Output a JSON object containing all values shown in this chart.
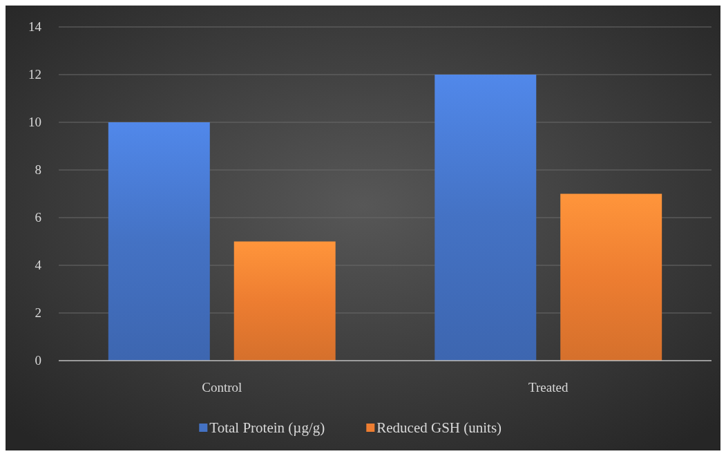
{
  "chart_data": {
    "type": "bar",
    "categories": [
      "Control",
      "Treated"
    ],
    "series": [
      {
        "name": "Total Protein (µg/g)",
        "color": "#4472c4",
        "values": [
          10,
          12
        ]
      },
      {
        "name": "Reduced GSH (units)",
        "color": "#ed7d31",
        "values": [
          5,
          7
        ]
      }
    ],
    "ylim": [
      0,
      14
    ],
    "yticks": [
      0,
      2,
      4,
      6,
      8,
      10,
      12,
      14
    ],
    "grid": "y",
    "legend": "bottom"
  }
}
